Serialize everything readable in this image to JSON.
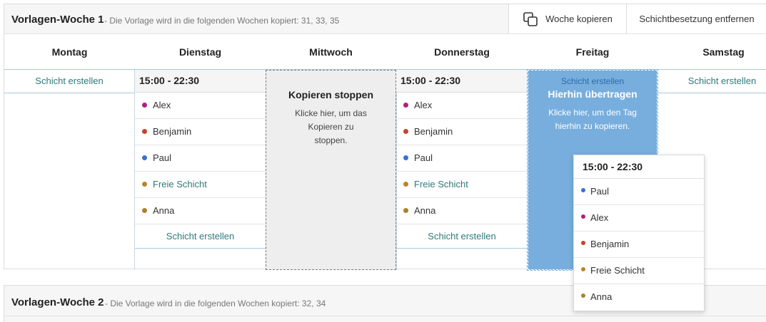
{
  "week1": {
    "title": "Vorlagen-Woche 1",
    "subtitle": "- Die Vorlage wird in die folgenden Wochen kopiert: 31, 33, 35",
    "copy_week_label": "Woche kopieren",
    "remove_staffing_label": "Schichtbesetzung entfernen",
    "days": [
      "Montag",
      "Dienstag",
      "Mittwoch",
      "Donnerstag",
      "Freitag",
      "Samstag"
    ],
    "create_shift_label": "Schicht erstellen",
    "tuesday": {
      "time": "15:00 - 22:30",
      "employees": [
        {
          "name": "Alex",
          "color": "#b0207a",
          "free": false
        },
        {
          "name": "Benjamin",
          "color": "#c0462b",
          "free": false
        },
        {
          "name": "Paul",
          "color": "#3a6fd4",
          "free": false
        },
        {
          "name": "Freie Schicht",
          "color": "#b8862b",
          "free": true
        },
        {
          "name": "Anna",
          "color": "#a8832a",
          "free": false
        }
      ]
    },
    "thursday": {
      "time": "15:00 - 22:30",
      "employees": [
        {
          "name": "Alex",
          "color": "#b0207a",
          "free": false
        },
        {
          "name": "Benjamin",
          "color": "#c0462b",
          "free": false
        },
        {
          "name": "Paul",
          "color": "#3a6fd4",
          "free": false
        },
        {
          "name": "Freie Schicht",
          "color": "#b8862b",
          "free": true
        },
        {
          "name": "Anna",
          "color": "#a8832a",
          "free": false
        }
      ]
    },
    "stop_copy": {
      "title": "Kopieren stoppen",
      "text": "Klicke hier, um das Kopieren zu stoppen."
    },
    "drop_target": {
      "link": "Schicht erstellen",
      "title": "Hierhin übertragen",
      "text": "Klicke hier, um den Tag hierhin zu kopieren."
    },
    "drag_preview": {
      "time": "15:00 - 22:30",
      "employees": [
        {
          "name": "Paul",
          "color": "#3a6fd4"
        },
        {
          "name": "Alex",
          "color": "#b0207a"
        },
        {
          "name": "Benjamin",
          "color": "#c0462b"
        },
        {
          "name": "Freie Schicht",
          "color": "#b8862b"
        },
        {
          "name": "Anna",
          "color": "#a8832a"
        }
      ]
    }
  },
  "week2": {
    "title": "Vorlagen-Woche 2",
    "subtitle": "- Die Vorlage wird in die folgenden Wochen kopiert: 32, 34"
  }
}
